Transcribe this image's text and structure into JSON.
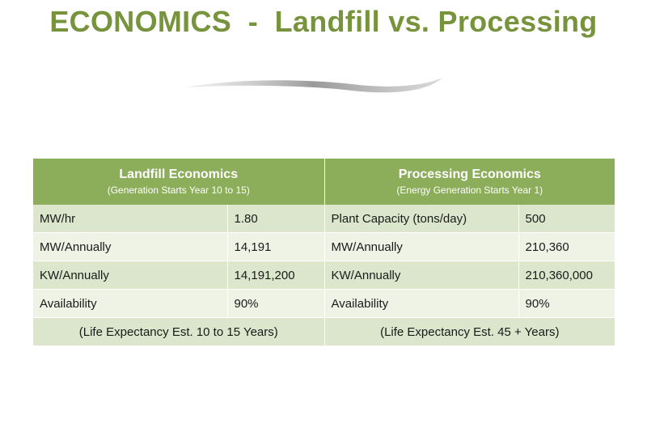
{
  "slide": {
    "title": "ECONOMICS  -  Landfill vs. Processing"
  },
  "table": {
    "landfill": {
      "title": "Landfill Economics",
      "subtitle": "(Generation Starts Year 10 to 15)",
      "rows": [
        {
          "label": "MW/hr",
          "value": "1.80"
        },
        {
          "label": "MW/Annually",
          "value": "14,191"
        },
        {
          "label": "KW/Annually",
          "value": "14,191,200"
        },
        {
          "label": "Availability",
          "value": "90%"
        }
      ],
      "footer": "(Life Expectancy Est. 10 to 15 Years)"
    },
    "processing": {
      "title": "Processing Economics",
      "subtitle": "(Energy Generation Starts Year 1)",
      "rows": [
        {
          "label": "Plant Capacity (tons/day)",
          "value": "500"
        },
        {
          "label": "MW/Annually",
          "value": "210,360"
        },
        {
          "label": "KW/Annually",
          "value": "210,360,000"
        },
        {
          "label": "Availability",
          "value": "90%"
        }
      ],
      "footer": "(Life Expectancy Est. 45 + Years)"
    }
  },
  "colors": {
    "title": "#77933c",
    "header_fill": "#8cad5a",
    "row_dark": "#dce6cc",
    "row_light": "#eef3e6"
  }
}
